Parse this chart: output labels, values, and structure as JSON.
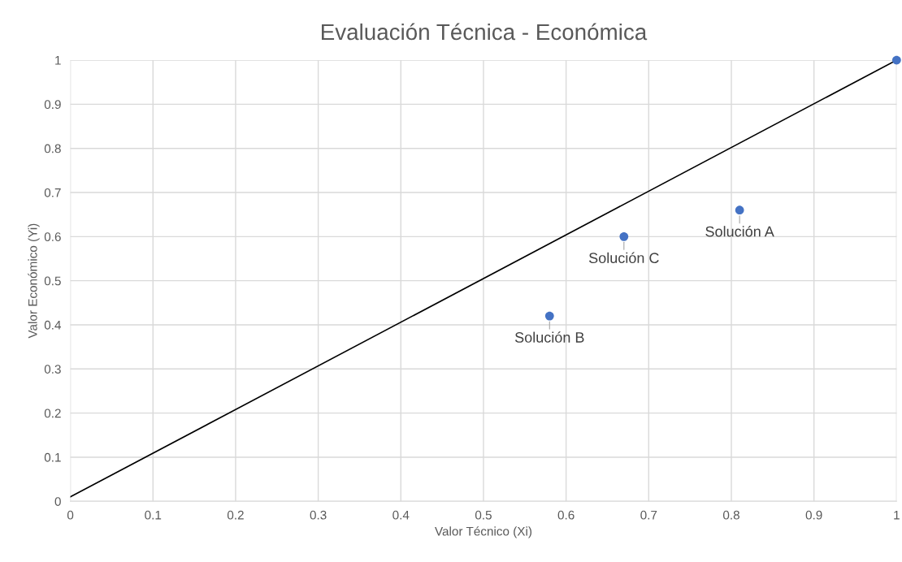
{
  "chart_data": {
    "type": "scatter",
    "title": "Evaluación Técnica - Económica",
    "xlabel": "Valor Técnico (Xi)",
    "ylabel": "Valor Económico (Yi)",
    "series": [
      {
        "color": "#4472c4",
        "x": [
          0.81,
          0.58,
          0.67,
          1
        ],
        "values": [
          0.66,
          0.42,
          0.6,
          1
        ],
        "marker": "circle"
      },
      {
        "type": "line",
        "color": "#000000",
        "x": [
          0,
          1
        ],
        "values": [
          0.01,
          1
        ],
        "marker": "none",
        "line_style": "solid"
      }
    ],
    "annotations": [
      {
        "text": "Solución A",
        "x": 0.81,
        "y": 0.66
      },
      {
        "text": "Solución B",
        "x": 0.58,
        "y": 0.42
      },
      {
        "text": "Solución C",
        "x": 0.67,
        "y": 0.6
      }
    ],
    "xlim": [
      0,
      1
    ],
    "ylim": [
      0,
      1
    ],
    "xticks": [
      0,
      0.1,
      0.2,
      0.3,
      0.4,
      0.5,
      0.6,
      0.7,
      0.8,
      0.9,
      1
    ],
    "yticks": [
      0,
      0.1,
      0.2,
      0.3,
      0.4,
      0.5,
      0.6,
      0.7,
      0.8,
      0.9,
      1
    ],
    "grid": true
  }
}
